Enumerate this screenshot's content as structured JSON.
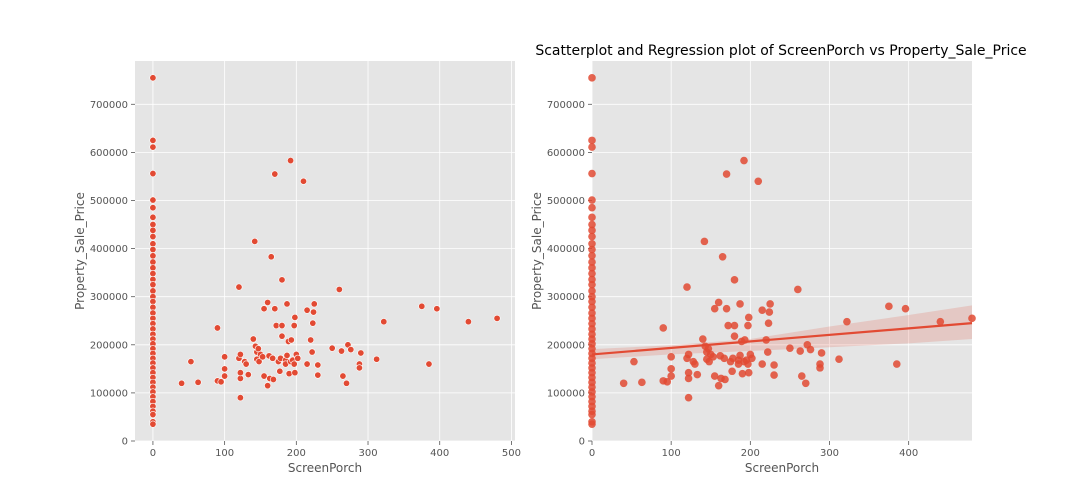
{
  "chart_data": [
    {
      "type": "scatter",
      "title": "",
      "xlabel": "ScreenPorch",
      "ylabel": "Property_Sale_Price",
      "xlim": [
        -25,
        505
      ],
      "ylim": [
        0,
        790000
      ],
      "xticks": [
        "0",
        "100",
        "200",
        "300",
        "400",
        "500"
      ],
      "xtick_values": [
        0,
        100,
        200,
        300,
        400,
        500
      ],
      "yticks": [
        "0",
        "100000",
        "200000",
        "300000",
        "400000",
        "500000",
        "600000",
        "700000"
      ],
      "ytick_values": [
        0,
        100000,
        200000,
        300000,
        400000,
        500000,
        600000,
        700000
      ],
      "grid": true,
      "color": "#e24a33",
      "points": [
        [
          0,
          755000
        ],
        [
          0,
          625000
        ],
        [
          0,
          611000
        ],
        [
          0,
          556000
        ],
        [
          0,
          501000
        ],
        [
          0,
          485000
        ],
        [
          0,
          465000
        ],
        [
          0,
          450000
        ],
        [
          0,
          438000
        ],
        [
          0,
          425000
        ],
        [
          0,
          410000
        ],
        [
          0,
          398000
        ],
        [
          0,
          385000
        ],
        [
          0,
          372000
        ],
        [
          0,
          360000
        ],
        [
          0,
          348000
        ],
        [
          0,
          336000
        ],
        [
          0,
          325000
        ],
        [
          0,
          312000
        ],
        [
          0,
          300000
        ],
        [
          0,
          290000
        ],
        [
          0,
          278000
        ],
        [
          0,
          266000
        ],
        [
          0,
          255000
        ],
        [
          0,
          244000
        ],
        [
          0,
          233000
        ],
        [
          0,
          222000
        ],
        [
          0,
          212000
        ],
        [
          0,
          202000
        ],
        [
          0,
          192000
        ],
        [
          0,
          182000
        ],
        [
          0,
          172000
        ],
        [
          0,
          162000
        ],
        [
          0,
          152000
        ],
        [
          0,
          142000
        ],
        [
          0,
          132000
        ],
        [
          0,
          122000
        ],
        [
          0,
          112000
        ],
        [
          0,
          102000
        ],
        [
          0,
          92000
        ],
        [
          0,
          82000
        ],
        [
          0,
          72000
        ],
        [
          0,
          62000
        ],
        [
          0,
          55000
        ],
        [
          0,
          40000
        ],
        [
          0,
          35000
        ],
        [
          40,
          120000
        ],
        [
          53,
          165000
        ],
        [
          63,
          122000
        ],
        [
          90,
          235000
        ],
        [
          90,
          125000
        ],
        [
          95,
          123000
        ],
        [
          100,
          175000
        ],
        [
          100,
          150000
        ],
        [
          100,
          135000
        ],
        [
          120,
          320000
        ],
        [
          120,
          172000
        ],
        [
          122,
          180000
        ],
        [
          122,
          130000
        ],
        [
          122,
          142000
        ],
        [
          122,
          90000
        ],
        [
          128,
          165000
        ],
        [
          130,
          160000
        ],
        [
          133,
          138000
        ],
        [
          140,
          212000
        ],
        [
          142,
          415000
        ],
        [
          143,
          197000
        ],
        [
          145,
          185000
        ],
        [
          145,
          170000
        ],
        [
          147,
          192000
        ],
        [
          148,
          165000
        ],
        [
          150,
          180000
        ],
        [
          153,
          175000
        ],
        [
          155,
          275000
        ],
        [
          155,
          135000
        ],
        [
          160,
          288000
        ],
        [
          160,
          115000
        ],
        [
          162,
          177000
        ],
        [
          163,
          130000
        ],
        [
          165,
          383000
        ],
        [
          167,
          172000
        ],
        [
          168,
          128000
        ],
        [
          170,
          555000
        ],
        [
          170,
          275000
        ],
        [
          172,
          240000
        ],
        [
          175,
          165000
        ],
        [
          177,
          145000
        ],
        [
          178,
          172000
        ],
        [
          180,
          335000
        ],
        [
          180,
          240000
        ],
        [
          180,
          218000
        ],
        [
          185,
          168000
        ],
        [
          185,
          160000
        ],
        [
          187,
          285000
        ],
        [
          187,
          178000
        ],
        [
          189,
          207000
        ],
        [
          190,
          140000
        ],
        [
          192,
          583000
        ],
        [
          192,
          165000
        ],
        [
          193,
          210000
        ],
        [
          195,
          168000
        ],
        [
          197,
          160000
        ],
        [
          197,
          240000
        ],
        [
          198,
          257000
        ],
        [
          198,
          142000
        ],
        [
          200,
          180000
        ],
        [
          202,
          172000
        ],
        [
          210,
          540000
        ],
        [
          215,
          272000
        ],
        [
          215,
          160000
        ],
        [
          220,
          210000
        ],
        [
          222,
          185000
        ],
        [
          223,
          245000
        ],
        [
          224,
          268000
        ],
        [
          225,
          285000
        ],
        [
          230,
          158000
        ],
        [
          230,
          137000
        ],
        [
          250,
          193000
        ],
        [
          260,
          315000
        ],
        [
          263,
          187000
        ],
        [
          265,
          135000
        ],
        [
          270,
          120000
        ],
        [
          272,
          200000
        ],
        [
          276,
          190000
        ],
        [
          288,
          160000
        ],
        [
          288,
          152000
        ],
        [
          290,
          183000
        ],
        [
          312,
          170000
        ],
        [
          322,
          248000
        ],
        [
          375,
          280000
        ],
        [
          385,
          160000
        ],
        [
          396,
          275000
        ],
        [
          440,
          248000
        ],
        [
          480,
          255000
        ]
      ]
    },
    {
      "type": "scatter",
      "title": "Scatterplot and Regression plot of ScreenPorch vs Property_Sale_Price",
      "xlabel": "ScreenPorch",
      "ylabel": "Property_Sale_Price",
      "xlim": [
        0,
        480
      ],
      "ylim": [
        0,
        790000
      ],
      "xticks": [
        "0",
        "100",
        "200",
        "300",
        "400"
      ],
      "xtick_values": [
        0,
        100,
        200,
        300,
        400
      ],
      "yticks": [
        "0",
        "100000",
        "200000",
        "300000",
        "400000",
        "500000",
        "600000",
        "700000"
      ],
      "ytick_values": [
        0,
        100000,
        200000,
        300000,
        400000,
        500000,
        600000,
        700000
      ],
      "grid": true,
      "color": "#e24a33",
      "regression": {
        "x": [
          0,
          480
        ],
        "y": [
          180000,
          245000
        ]
      },
      "confidence_band": {
        "x": [
          0,
          100,
          200,
          300,
          400,
          480
        ],
        "lower": [
          170000,
          180000,
          187000,
          195000,
          203000,
          212000
        ],
        "upper": [
          191000,
          199000,
          212000,
          238000,
          262000,
          282000
        ]
      }
    }
  ]
}
